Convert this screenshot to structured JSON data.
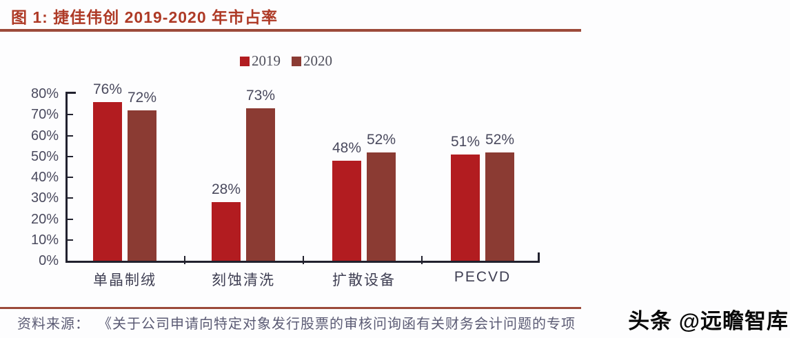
{
  "header": {
    "title": "图 1:  捷佳伟创 2019-2020 年市占率"
  },
  "chart_data": {
    "type": "bar",
    "title": "捷佳伟创 2019-2020 年市占率",
    "categories": [
      "单晶制绒",
      "刻蚀清洗",
      "扩散设备",
      "PECVD"
    ],
    "series": [
      {
        "name": "2019",
        "color": "#b21c20",
        "values": [
          76,
          28,
          48,
          51
        ]
      },
      {
        "name": "2020",
        "color": "#8b3b33",
        "values": [
          72,
          73,
          52,
          52
        ]
      }
    ],
    "xlabel": "",
    "ylabel": "",
    "ylim": [
      0,
      80
    ],
    "ytick_step": 10,
    "yticks": [
      "0%",
      "10%",
      "20%",
      "30%",
      "40%",
      "50%",
      "60%",
      "70%",
      "80%"
    ],
    "data_label_suffix": "%",
    "legend_position": "top-center",
    "grid": false
  },
  "footer": {
    "source_label": "资料来源：",
    "source_text": "《关于公司申请向特定对象发行股票的审核问询函有关财务会计问题的专项",
    "watermark": "头条 @远瞻智库"
  },
  "colors": {
    "accent_title": "#ae3a26",
    "rule": "#9c4a3a",
    "axis": "#21212e",
    "label_text": "#4a4a5e",
    "series_2019": "#b21c20",
    "series_2020": "#8b3b33"
  }
}
